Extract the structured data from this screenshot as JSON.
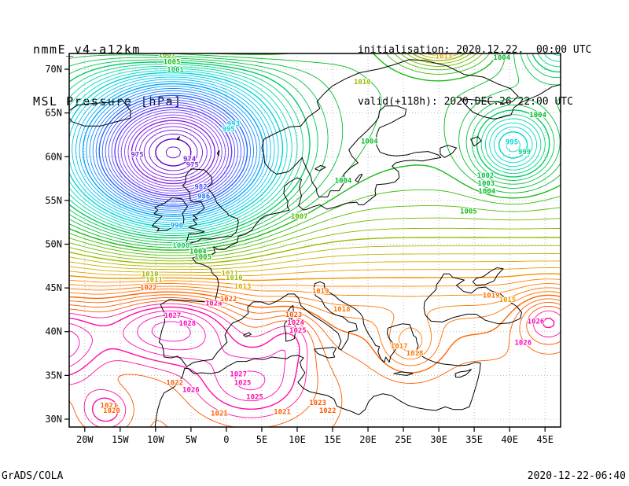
{
  "header": {
    "model": "nmmE_v4-a12km",
    "field": "MSL Pressure [hPa]",
    "init": "initialisation: 2020.12.22.  00:00 UTC",
    "valid": "valid(+118h): 2020.DEC.26 22:00 UTC"
  },
  "footer": {
    "left": "GrADS/COLA",
    "right": "2020-12-22-06:40"
  },
  "colors": {
    "background": "#ffffff",
    "coast": "#000000",
    "frame": "#000000",
    "grid": "#aaaaaa",
    "text": "#000000"
  },
  "chart_data": {
    "type": "contour",
    "title": "MSL Pressure [hPa]",
    "units": "hPa",
    "contour_interval_hPa": 1,
    "contour_levels": {
      "min": 966,
      "max": 1032,
      "step": 1
    },
    "lon_range": [
      -22.2,
      47.2
    ],
    "lat_range": [
      29.1,
      71.8
    ],
    "x_axis": {
      "ticks": [
        {
          "deg": -20,
          "label": "20W"
        },
        {
          "deg": -15,
          "label": "15W"
        },
        {
          "deg": -10,
          "label": "10W"
        },
        {
          "deg": -5,
          "label": "5W"
        },
        {
          "deg": 0,
          "label": "0"
        },
        {
          "deg": 5,
          "label": "5E"
        },
        {
          "deg": 10,
          "label": "10E"
        },
        {
          "deg": 15,
          "label": "15E"
        },
        {
          "deg": 20,
          "label": "20E"
        },
        {
          "deg": 25,
          "label": "25E"
        },
        {
          "deg": 30,
          "label": "30E"
        },
        {
          "deg": 35,
          "label": "35E"
        },
        {
          "deg": 40,
          "label": "40E"
        },
        {
          "deg": 45,
          "label": "45E"
        }
      ]
    },
    "y_axis": {
      "ticks": [
        {
          "deg": 30,
          "label": "30N"
        },
        {
          "deg": 35,
          "label": "35N"
        },
        {
          "deg": 40,
          "label": "40N"
        },
        {
          "deg": 45,
          "label": "45N"
        },
        {
          "deg": 50,
          "label": "50N"
        },
        {
          "deg": 55,
          "label": "55N"
        },
        {
          "deg": 60,
          "label": "60N"
        },
        {
          "deg": 65,
          "label": "65N"
        },
        {
          "deg": 70,
          "label": "70N"
        }
      ]
    },
    "grid": {
      "style": "dotted",
      "color": "#aaaaaa"
    },
    "pressure_centers": [
      {
        "type": "low",
        "value": 974,
        "lon": -6.0,
        "lat": 60.0
      },
      {
        "type": "low",
        "value": 995,
        "lon": 40.5,
        "lat": 61.0
      },
      {
        "type": "high",
        "value": 1028,
        "lon": -5.5,
        "lat": 40.8
      },
      {
        "type": "high",
        "value": 1027,
        "lon": 2.0,
        "lat": 34.5
      },
      {
        "type": "high",
        "value": 1026,
        "lon": 44.0,
        "lat": 41.0
      }
    ],
    "color_scale": [
      {
        "v": 970,
        "c": "#6600cc"
      },
      {
        "v": 976,
        "c": "#8833ee"
      },
      {
        "v": 981,
        "c": "#5544ff"
      },
      {
        "v": 985,
        "c": "#2266ff"
      },
      {
        "v": 989,
        "c": "#0099ff"
      },
      {
        "v": 993,
        "c": "#00ccee"
      },
      {
        "v": 997,
        "c": "#00ddbb"
      },
      {
        "v": 1000,
        "c": "#00cc66"
      },
      {
        "v": 1004,
        "c": "#00bb22"
      },
      {
        "v": 1007,
        "c": "#55bb00"
      },
      {
        "v": 1010,
        "c": "#99bb00"
      },
      {
        "v": 1013,
        "c": "#ddaa00"
      },
      {
        "v": 1016,
        "c": "#ff8800"
      },
      {
        "v": 1020,
        "c": "#ff6600"
      },
      {
        "v": 1023,
        "c": "#ff5500"
      },
      {
        "v": 1024,
        "c": "#ff1199"
      },
      {
        "v": 1028,
        "c": "#ff00cc"
      },
      {
        "v": 1032,
        "c": "#ee00ee"
      }
    ],
    "contour_labels": [
      {
        "v": 975,
        "lon": -12.6,
        "lat": 60.0
      },
      {
        "v": 974,
        "lon": -5.2,
        "lat": 59.5
      },
      {
        "v": 975,
        "lon": -4.8,
        "lat": 58.8
      },
      {
        "v": 982,
        "lon": -3.6,
        "lat": 56.3
      },
      {
        "v": 986,
        "lon": -3.2,
        "lat": 55.2
      },
      {
        "v": 990,
        "lon": -7.0,
        "lat": 51.9
      },
      {
        "v": 993,
        "lon": 1.0,
        "lat": 63.5
      },
      {
        "v": 995,
        "lon": 0.3,
        "lat": 62.9
      },
      {
        "v": 1007,
        "lon": -8.4,
        "lat": 71.4
      },
      {
        "v": 1005,
        "lon": -7.7,
        "lat": 70.6
      },
      {
        "v": 1001,
        "lon": -7.2,
        "lat": 69.7
      },
      {
        "v": 1000,
        "lon": -6.4,
        "lat": 49.6
      },
      {
        "v": 1004,
        "lon": -4.0,
        "lat": 48.9
      },
      {
        "v": 1005,
        "lon": -3.3,
        "lat": 48.3
      },
      {
        "v": 1010,
        "lon": -10.8,
        "lat": 46.3
      },
      {
        "v": 1011,
        "lon": -10.2,
        "lat": 45.7
      },
      {
        "v": 1022,
        "lon": -11.0,
        "lat": 44.8
      },
      {
        "v": 1011,
        "lon": 0.5,
        "lat": 46.4
      },
      {
        "v": 1010,
        "lon": 1.1,
        "lat": 45.9
      },
      {
        "v": 1013,
        "lon": 2.3,
        "lat": 44.9
      },
      {
        "v": 1027,
        "lon": -7.6,
        "lat": 41.6
      },
      {
        "v": 1028,
        "lon": -5.5,
        "lat": 40.7
      },
      {
        "v": 1024,
        "lon": -1.8,
        "lat": 43.0
      },
      {
        "v": 1022,
        "lon": 0.3,
        "lat": 43.5
      },
      {
        "v": 1021,
        "lon": -16.6,
        "lat": 31.3
      },
      {
        "v": 1020,
        "lon": -16.2,
        "lat": 30.7
      },
      {
        "v": 1026,
        "lon": -5.0,
        "lat": 33.1
      },
      {
        "v": 1022,
        "lon": -7.3,
        "lat": 33.9
      },
      {
        "v": 1027,
        "lon": 1.7,
        "lat": 34.9
      },
      {
        "v": 1025,
        "lon": 2.3,
        "lat": 33.9
      },
      {
        "v": 1025,
        "lon": 4.0,
        "lat": 32.3
      },
      {
        "v": 1021,
        "lon": -1.0,
        "lat": 30.4
      },
      {
        "v": 1023,
        "lon": 12.9,
        "lat": 31.6
      },
      {
        "v": 1022,
        "lon": 14.3,
        "lat": 30.7
      },
      {
        "v": 1021,
        "lon": 7.9,
        "lat": 30.6
      },
      {
        "v": 1023,
        "lon": 9.5,
        "lat": 41.7
      },
      {
        "v": 1024,
        "lon": 9.8,
        "lat": 40.8
      },
      {
        "v": 1025,
        "lon": 10.1,
        "lat": 39.9
      },
      {
        "v": 1019,
        "lon": 13.3,
        "lat": 44.4
      },
      {
        "v": 1018,
        "lon": 16.3,
        "lat": 42.3
      },
      {
        "v": 1017,
        "lon": 24.4,
        "lat": 38.1
      },
      {
        "v": 1018,
        "lon": 26.6,
        "lat": 37.3
      },
      {
        "v": 1004,
        "lon": 20.2,
        "lat": 61.5
      },
      {
        "v": 1004,
        "lon": 16.5,
        "lat": 57.0
      },
      {
        "v": 1007,
        "lon": 10.3,
        "lat": 52.9
      },
      {
        "v": 1010,
        "lon": 19.2,
        "lat": 68.3
      },
      {
        "v": 1013,
        "lon": 30.7,
        "lat": 71.2
      },
      {
        "v": 1004,
        "lon": 38.9,
        "lat": 71.1
      },
      {
        "v": 1002,
        "lon": 36.6,
        "lat": 57.6
      },
      {
        "v": 1003,
        "lon": 36.7,
        "lat": 56.7
      },
      {
        "v": 1004,
        "lon": 36.8,
        "lat": 55.8
      },
      {
        "v": 1005,
        "lon": 34.2,
        "lat": 53.5
      },
      {
        "v": 995,
        "lon": 40.3,
        "lat": 61.4
      },
      {
        "v": 999,
        "lon": 42.1,
        "lat": 60.3
      },
      {
        "v": 1004,
        "lon": 44.0,
        "lat": 64.5
      },
      {
        "v": 1019,
        "lon": 37.4,
        "lat": 43.9
      },
      {
        "v": 1015,
        "lon": 39.7,
        "lat": 43.4
      },
      {
        "v": 1026,
        "lon": 43.7,
        "lat": 40.9
      },
      {
        "v": 1026,
        "lon": 41.9,
        "lat": 38.5
      }
    ]
  }
}
